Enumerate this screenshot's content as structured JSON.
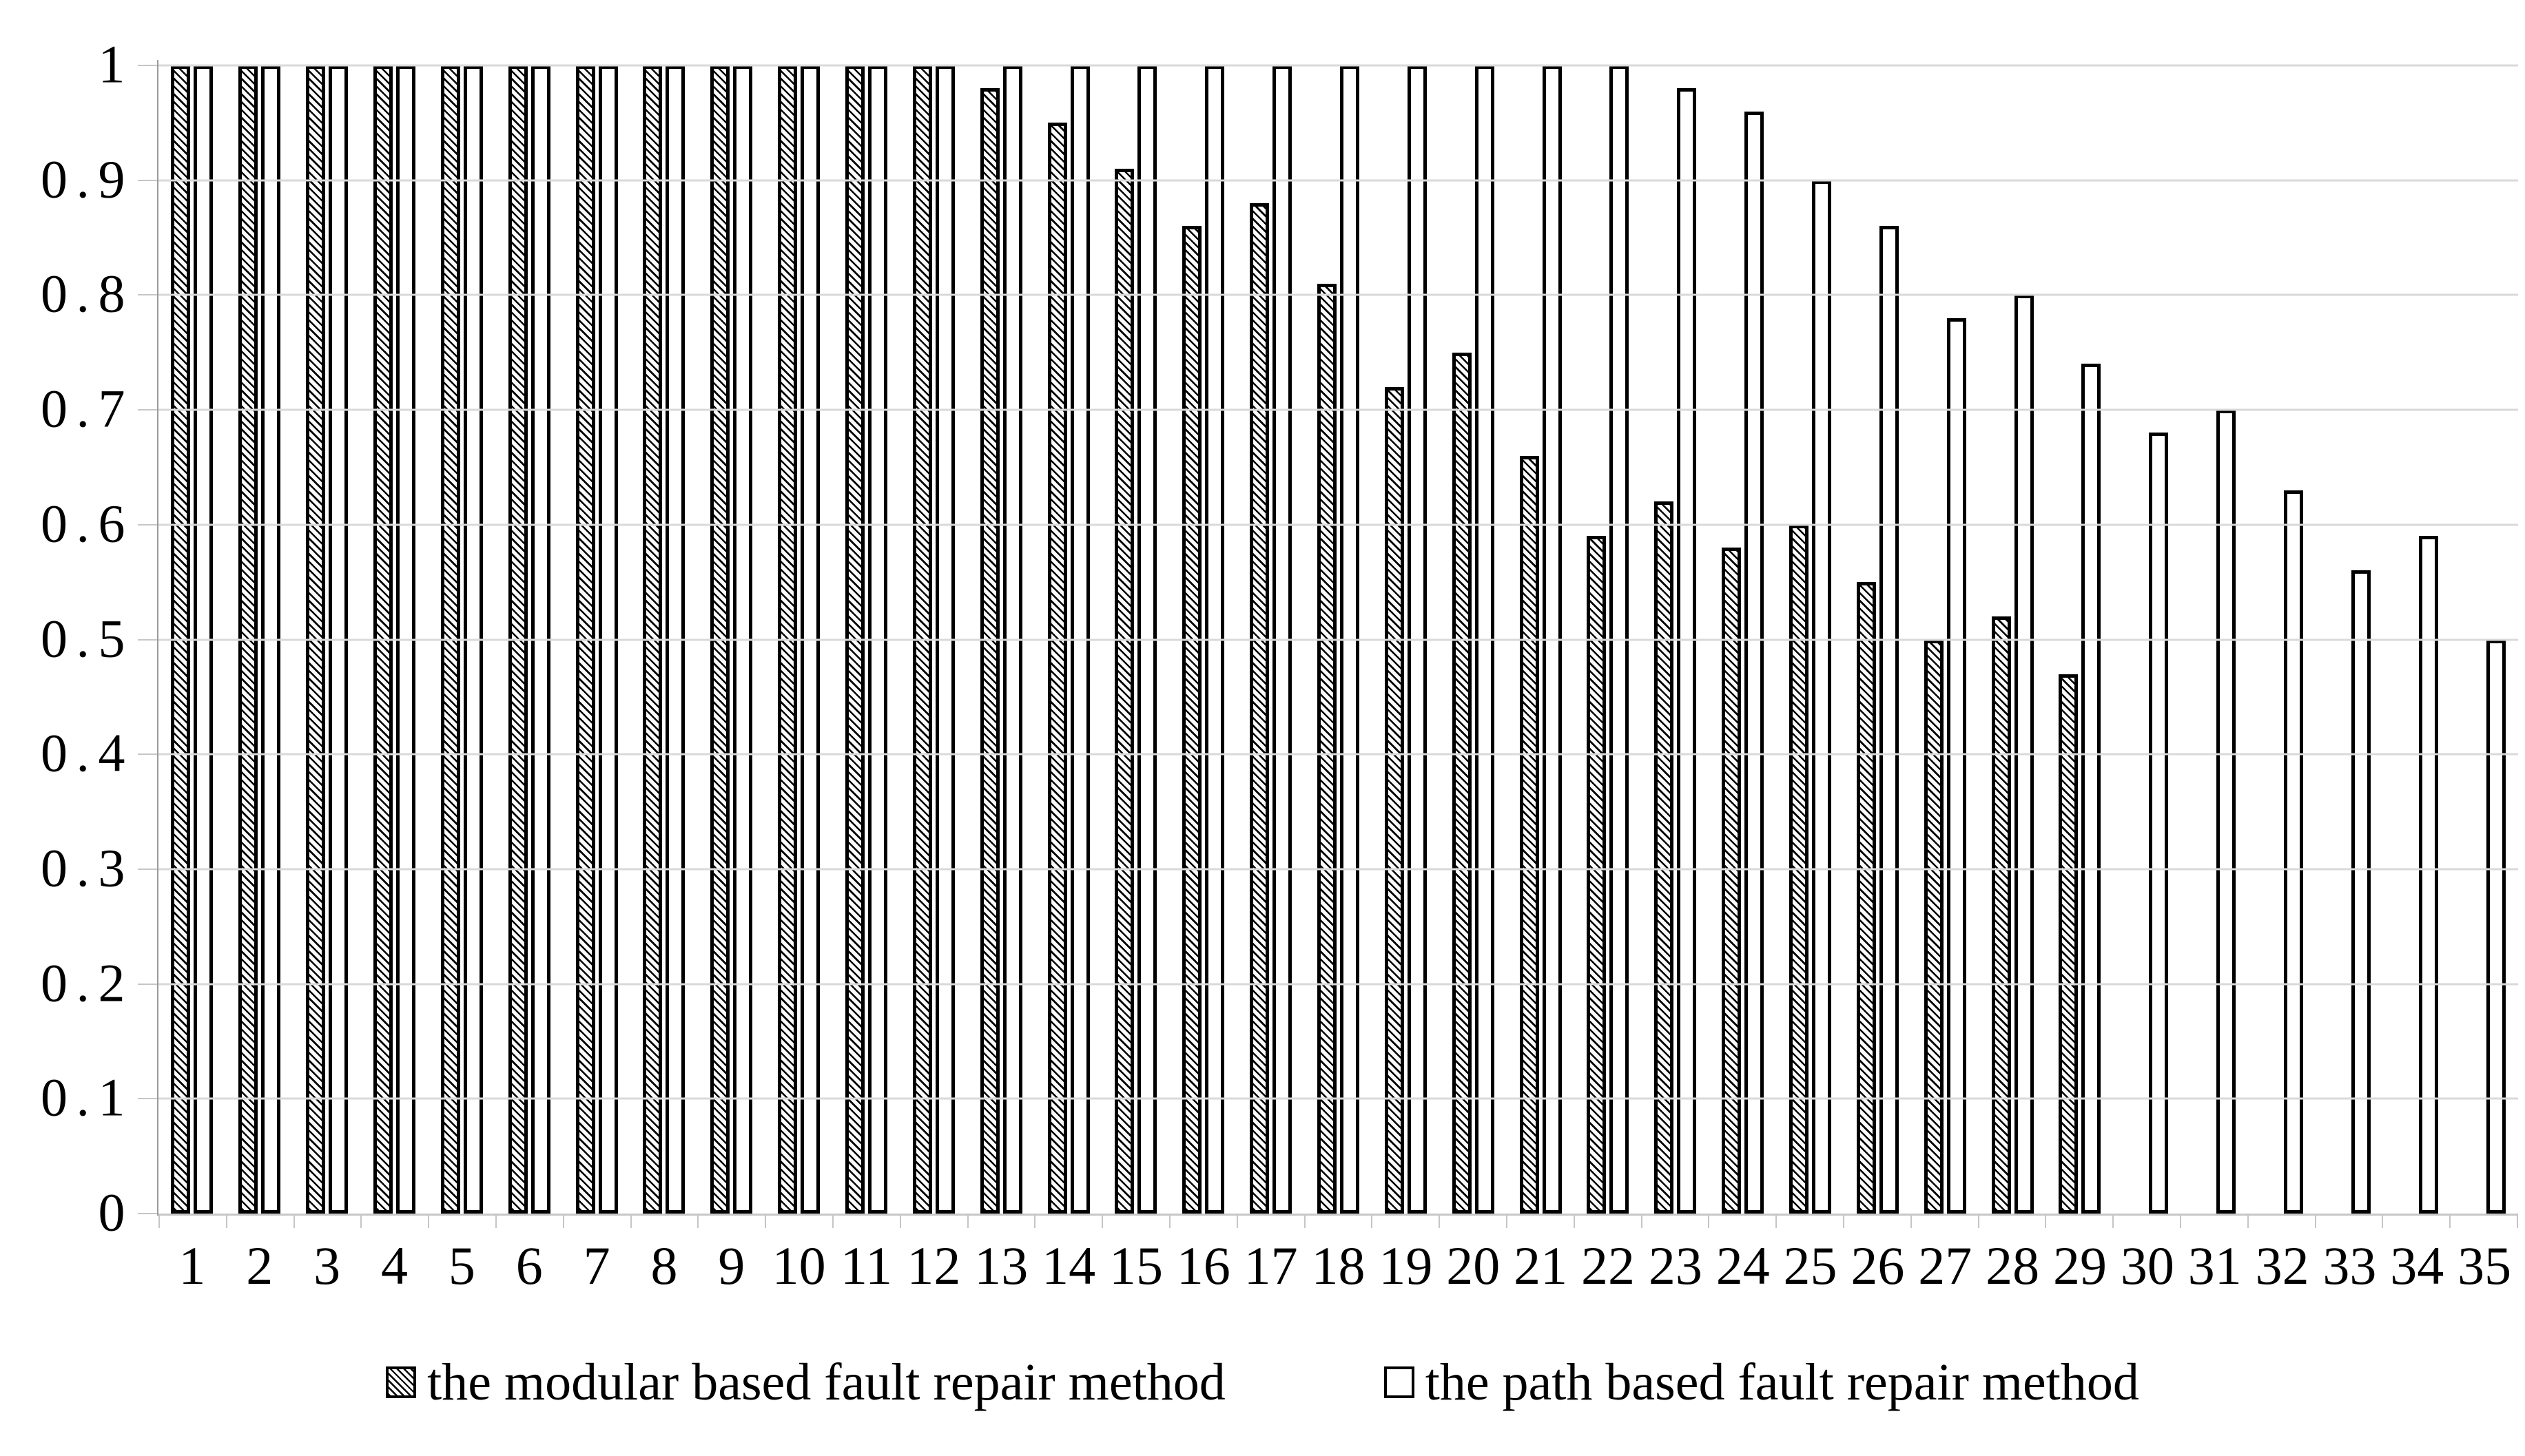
{
  "chart_data": {
    "type": "bar",
    "title": "",
    "xlabel": "",
    "ylabel": "",
    "ylim": [
      0,
      1
    ],
    "grid": "horizontal",
    "legend_position": "bottom",
    "categories": [
      "1",
      "2",
      "3",
      "4",
      "5",
      "6",
      "7",
      "8",
      "9",
      "10",
      "11",
      "12",
      "13",
      "14",
      "15",
      "16",
      "17",
      "18",
      "19",
      "20",
      "21",
      "22",
      "23",
      "24",
      "25",
      "26",
      "27",
      "28",
      "29",
      "30",
      "31",
      "32",
      "33",
      "34",
      "35"
    ],
    "yticks": [
      {
        "value": 1,
        "label": "1"
      },
      {
        "value": 0.9,
        "label": "0.9"
      },
      {
        "value": 0.8,
        "label": "0.8"
      },
      {
        "value": 0.7,
        "label": "0.7"
      },
      {
        "value": 0.6,
        "label": "0.6"
      },
      {
        "value": 0.5,
        "label": "0.5"
      },
      {
        "value": 0.4,
        "label": "0.4"
      },
      {
        "value": 0.3,
        "label": "0.3"
      },
      {
        "value": 0.2,
        "label": "0.2"
      },
      {
        "value": 0.1,
        "label": "0.1"
      },
      {
        "value": 0,
        "label": "0"
      }
    ],
    "series": [
      {
        "name": "the modular based fault repair method",
        "style": "diagonal-hatch",
        "values": [
          1,
          1,
          1,
          1,
          1,
          1,
          1,
          1,
          1,
          1,
          1,
          1,
          0.98,
          0.95,
          0.91,
          0.86,
          0.88,
          0.81,
          0.72,
          0.75,
          0.66,
          0.59,
          0.62,
          0.58,
          0.6,
          0.55,
          0.5,
          0.52,
          0.47,
          null,
          null,
          null,
          null,
          null,
          null
        ]
      },
      {
        "name": "the path based fault repair method",
        "style": "white-outline",
        "values": [
          1,
          1,
          1,
          1,
          1,
          1,
          1,
          1,
          1,
          1,
          1,
          1,
          1,
          1,
          1,
          1,
          1,
          1,
          1,
          1,
          1,
          1,
          0.98,
          0.96,
          0.9,
          0.86,
          0.78,
          0.8,
          0.74,
          0.68,
          0.7,
          0.63,
          0.56,
          0.59,
          0.5
        ]
      }
    ]
  },
  "legend": {
    "modular_label": "the modular based fault repair method",
    "path_label": "the path based fault repair method"
  },
  "colors": {
    "gridline": "#d9d9d9",
    "axis": "#c6c6c6",
    "bar_outline": "#000000",
    "background": "#ffffff"
  }
}
